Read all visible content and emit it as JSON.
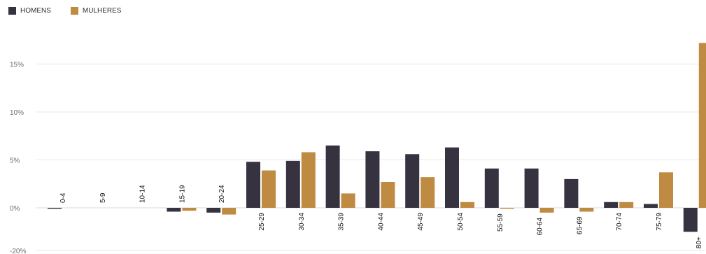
{
  "colors": {
    "homens": "#36323f",
    "mulheres": "#bf8a41",
    "grid": "#e6e6e6",
    "zero": "#d8d8d8"
  },
  "legend": [
    {
      "name": "HOMENS",
      "color": "#36323f"
    },
    {
      "name": "MULHERES",
      "color": "#bf8a41"
    }
  ],
  "chart_data": {
    "type": "bar",
    "categories": [
      "0-4",
      "5-9",
      "10-14",
      "15-19",
      "20-24",
      "25-29",
      "30-34",
      "35-39",
      "40-44",
      "45-49",
      "50-54",
      "55-59",
      "60-64",
      "65-69",
      "70-74",
      "75-79",
      "80+"
    ],
    "series": [
      {
        "name": "HOMENS",
        "values": [
          -0.1,
          0,
          0,
          -0.4,
          -0.5,
          4.8,
          4.9,
          6.5,
          5.9,
          5.6,
          6.3,
          4.1,
          4.1,
          3.0,
          0.6,
          0.4,
          -2.5
        ]
      },
      {
        "name": "MULHERES",
        "values": [
          0,
          0,
          0,
          -0.3,
          -0.7,
          3.9,
          5.8,
          1.5,
          2.7,
          3.2,
          0.6,
          -0.1,
          -0.5,
          -0.4,
          0.6,
          3.7,
          17.2
        ]
      }
    ],
    "yticks": [
      -20,
      0,
      5,
      10,
      15
    ],
    "ytick_labels": [
      "-20%",
      "0%",
      "5%",
      "10%",
      "15%"
    ],
    "grid": true,
    "legend_position": "top-left"
  }
}
